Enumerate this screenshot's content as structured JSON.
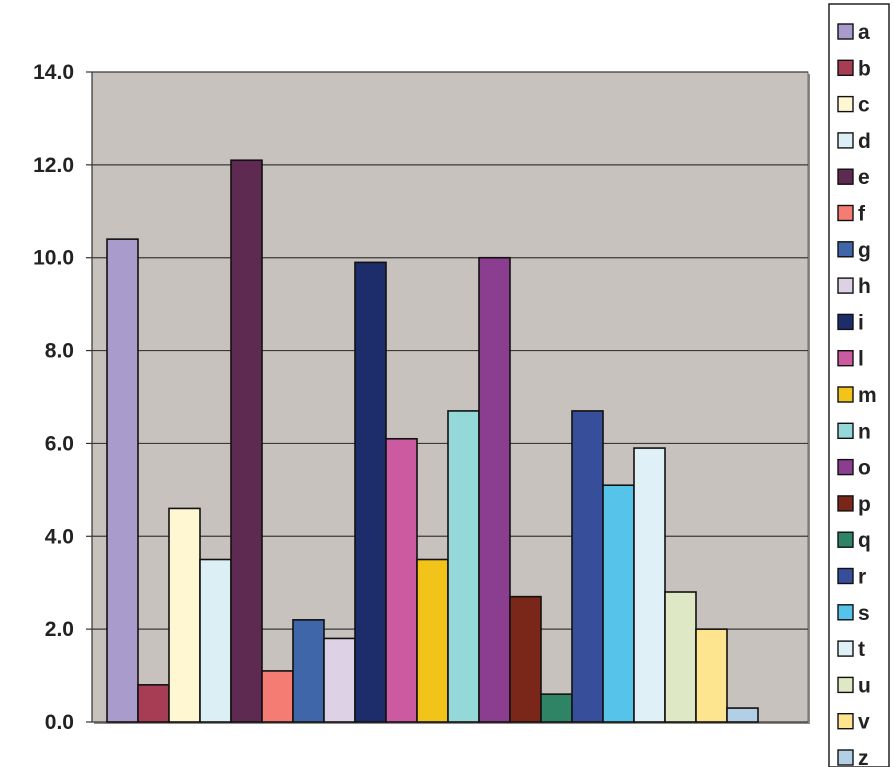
{
  "chart_data": {
    "type": "bar",
    "categories": [
      "a",
      "b",
      "c",
      "d",
      "e",
      "f",
      "g",
      "h",
      "i",
      "l",
      "m",
      "n",
      "o",
      "p",
      "q",
      "r",
      "s",
      "t",
      "u",
      "v",
      "z"
    ],
    "values": [
      10.4,
      0.8,
      4.6,
      3.5,
      12.1,
      1.1,
      2.2,
      1.8,
      9.9,
      6.1,
      3.5,
      6.7,
      10.0,
      2.7,
      0.6,
      6.7,
      5.1,
      5.9,
      2.8,
      2.0,
      0.3
    ],
    "colors": [
      "#a99ccd",
      "#a63d55",
      "#fff6d2",
      "#dceff5",
      "#5e2a52",
      "#f47c72",
      "#3f66a8",
      "#ddd1e6",
      "#1d2d6b",
      "#cc5aa0",
      "#f2c318",
      "#94d8da",
      "#8b3d8f",
      "#7a2618",
      "#2f8466",
      "#374e9a",
      "#56c4ea",
      "#dff1f7",
      "#dfe8c4",
      "#fde58f",
      "#b3cfe6"
    ],
    "ylim": [
      0,
      14
    ],
    "yticks": [
      "0.0",
      "2.0",
      "4.0",
      "6.0",
      "8.0",
      "10.0",
      "12.0",
      "14.0"
    ],
    "grid": true,
    "legend_position": "right",
    "plot_background": "#c7c2bd",
    "title": "",
    "xlabel": "",
    "ylabel": ""
  }
}
